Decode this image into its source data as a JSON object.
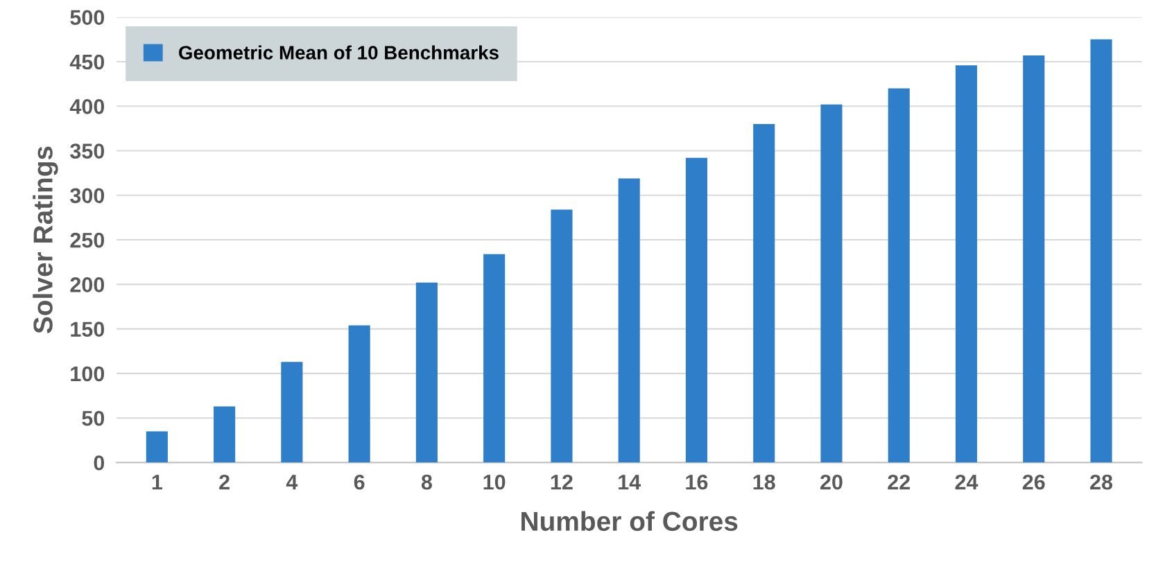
{
  "chart_data": {
    "type": "bar",
    "xlabel": "Number of Cores",
    "ylabel": "Solver Ratings",
    "categories": [
      "1",
      "2",
      "4",
      "6",
      "8",
      "10",
      "12",
      "14",
      "16",
      "18",
      "20",
      "22",
      "24",
      "26",
      "28"
    ],
    "series": [
      {
        "name": "Geometric Mean of 10 Benchmarks",
        "color": "#2f7ec9",
        "values": [
          35,
          63,
          113,
          154,
          202,
          234,
          284,
          319,
          342,
          380,
          402,
          420,
          446,
          457,
          475
        ]
      }
    ],
    "ylim": [
      0,
      500
    ],
    "yticks": [
      0,
      50,
      100,
      150,
      200,
      250,
      300,
      350,
      400,
      450,
      500
    ],
    "grid": "y",
    "legend": "top left"
  }
}
